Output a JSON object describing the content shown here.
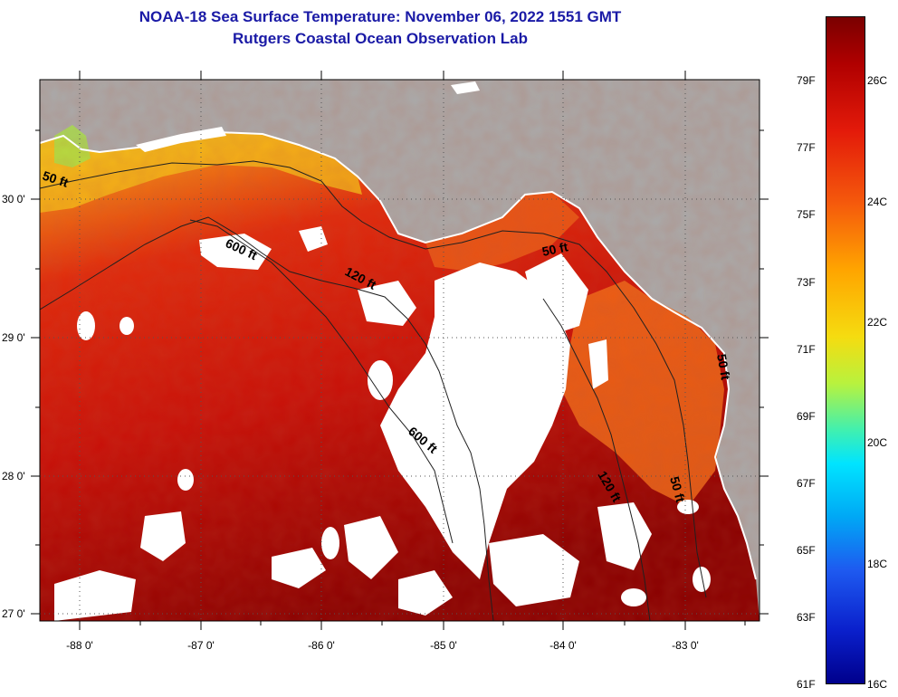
{
  "title": {
    "line1": "NOAA-18 Sea Surface Temperature:  November 06, 2022 1551 GMT",
    "line2": "Rutgers Coastal Ocean Observation Lab"
  },
  "colors": {
    "land": "#aaaaaa",
    "cloud": "#ffffff",
    "coastline": "#ffffff",
    "contour": "#202020",
    "title": "#1a1aa6"
  },
  "map": {
    "lon_labels": [
      "-88 0'",
      "-87 0'",
      "-86 0'",
      "-85 0'",
      "-84 0'",
      "-83 0'"
    ],
    "lat_labels": [
      "30 0'",
      "29 0'",
      "28 0'",
      "27 0'"
    ],
    "lon_range": [
      -88.35,
      -82.4
    ],
    "lat_range": [
      26.95,
      30.85
    ],
    "contour_labels": [
      "50 ft",
      "600 ft",
      "120 ft",
      "50 ft",
      "600 ft",
      "120 ft",
      "50 ft",
      "50 ft"
    ]
  },
  "colorbar": {
    "fahrenheit": [
      "79F",
      "77F",
      "75F",
      "73F",
      "71F",
      "69F",
      "67F",
      "65F",
      "63F",
      "61F"
    ],
    "celsius": [
      "26C",
      "24C",
      "22C",
      "20C",
      "18C",
      "16C"
    ]
  }
}
